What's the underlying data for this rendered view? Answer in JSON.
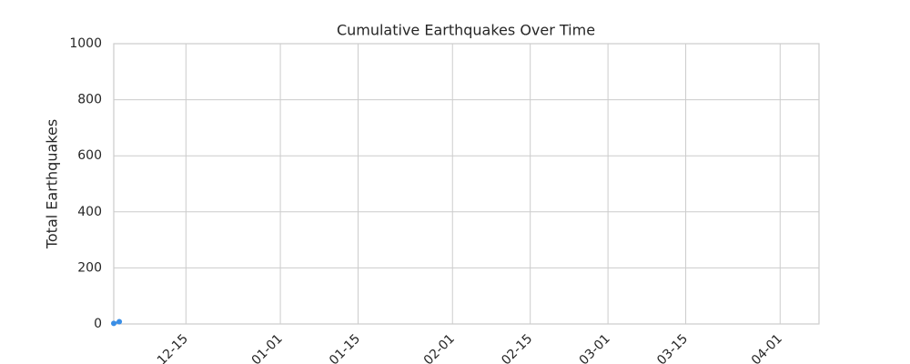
{
  "chart_data": {
    "type": "line",
    "title": "Cumulative Earthquakes Over Time",
    "y_label": "Total Earthquakes",
    "x": [
      "12-02",
      "12-03"
    ],
    "series": [
      {
        "name": "Cumulative Earthquakes",
        "color": "#3a8ee6",
        "values": [
          2,
          8
        ]
      }
    ],
    "xlim": [
      "12-02",
      "04-08"
    ],
    "xticks": [
      "12-15",
      "01-01",
      "01-15",
      "02-01",
      "02-15",
      "03-01",
      "03-15",
      "04-01"
    ],
    "ylim": [
      0,
      1000
    ],
    "yticks": [
      0,
      200,
      400,
      600,
      800,
      1000
    ],
    "grid": true
  }
}
